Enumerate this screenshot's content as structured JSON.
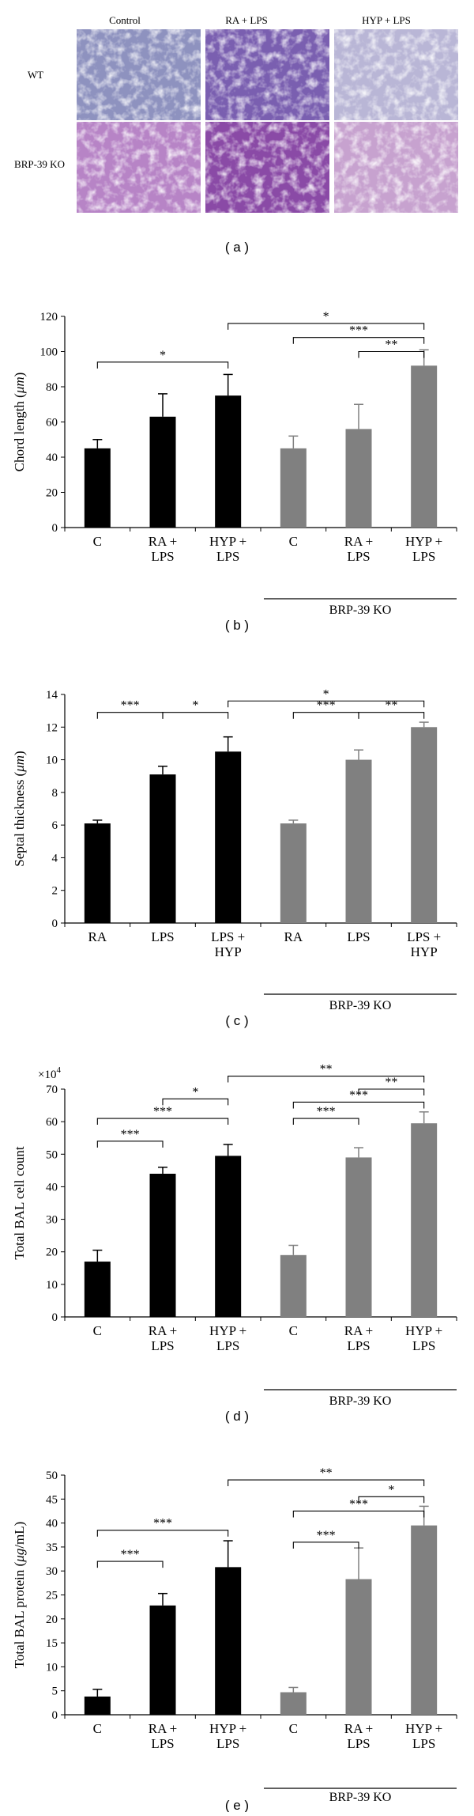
{
  "micrographs": {
    "columns": [
      "Control",
      "RA + LPS",
      "HYP + LPS"
    ],
    "rows": [
      "WT",
      "BRP-39 KO"
    ],
    "colors": [
      [
        "#8e92bf",
        "#7a5fb0",
        "#b9b6d6"
      ],
      [
        "#b784c6",
        "#8a4aa6",
        "#c7a2cf"
      ]
    ],
    "label": "( a )"
  },
  "chart_data": [
    {
      "type": "bar",
      "panel_label": "( b )",
      "ylabel": "Chord length (μm)",
      "ylabel_parts": [
        "Chord length (",
        "μm",
        ")"
      ],
      "ylim": [
        0,
        120
      ],
      "yticks": [
        0,
        20,
        40,
        60,
        80,
        100,
        120
      ],
      "tick_prefix": "",
      "categories": [
        [
          "C"
        ],
        [
          "RA +",
          "LPS"
        ],
        [
          "HYP +",
          "LPS"
        ],
        [
          "C"
        ],
        [
          "RA +",
          "LPS"
        ],
        [
          "HYP +",
          "LPS"
        ]
      ],
      "values": [
        45,
        63,
        75,
        45,
        56,
        92
      ],
      "errors": [
        5,
        13,
        12,
        7,
        14,
        9
      ],
      "colors": [
        "#000000",
        "#000000",
        "#000000",
        "#808080",
        "#808080",
        "#808080"
      ],
      "group_label": "BRP-39 KO",
      "multiplier": "",
      "brackets": [
        {
          "from": 0,
          "to": 2,
          "y": 94,
          "label": "*"
        },
        {
          "from": 2,
          "to": 5,
          "y": 116,
          "label": "*"
        },
        {
          "from": 3,
          "to": 5,
          "y": 108,
          "label": "***"
        },
        {
          "from": 4,
          "to": 5,
          "y": 100,
          "label": "**"
        }
      ]
    },
    {
      "type": "bar",
      "panel_label": "( c )",
      "ylabel": "Septal thickness (μm)",
      "ylabel_parts": [
        "Septal thickness (",
        "μm",
        ")"
      ],
      "ylim": [
        0,
        14
      ],
      "yticks": [
        0,
        2,
        4,
        6,
        8,
        10,
        12,
        14
      ],
      "tick_prefix": "",
      "categories": [
        [
          "RA"
        ],
        [
          "LPS"
        ],
        [
          "LPS +",
          "HYP"
        ],
        [
          "RA"
        ],
        [
          "LPS"
        ],
        [
          "LPS +",
          "HYP"
        ]
      ],
      "values": [
        6.1,
        9.1,
        10.5,
        6.1,
        10.0,
        12.0
      ],
      "errors": [
        0.2,
        0.5,
        0.9,
        0.2,
        0.6,
        0.3
      ],
      "colors": [
        "#000000",
        "#000000",
        "#000000",
        "#808080",
        "#808080",
        "#808080"
      ],
      "group_label": "BRP-39 KO",
      "multiplier": "",
      "brackets": [
        {
          "from": 0,
          "to": 1,
          "y": 12.9,
          "label": "***"
        },
        {
          "from": 1,
          "to": 2,
          "y": 12.9,
          "label": "*"
        },
        {
          "from": 2,
          "to": 5,
          "y": 13.6,
          "label": "*"
        },
        {
          "from": 3,
          "to": 4,
          "y": 12.9,
          "label": "***"
        },
        {
          "from": 4,
          "to": 5,
          "y": 12.9,
          "label": "**"
        }
      ]
    },
    {
      "type": "bar",
      "panel_label": "( d )",
      "ylabel": "Total BAL cell count",
      "ylabel_parts": [
        "Total BAL cell count",
        "",
        ""
      ],
      "ylim": [
        0,
        70
      ],
      "yticks": [
        0,
        10,
        20,
        30,
        40,
        50,
        60,
        70
      ],
      "tick_prefix": "",
      "categories": [
        [
          "C"
        ],
        [
          "RA +",
          "LPS"
        ],
        [
          "HYP +",
          "LPS"
        ],
        [
          "C"
        ],
        [
          "RA +",
          "LPS"
        ],
        [
          "HYP +",
          "LPS"
        ]
      ],
      "values": [
        17,
        44,
        49.5,
        19,
        49,
        59.5
      ],
      "errors": [
        3.5,
        2,
        3.5,
        3,
        3,
        3.5
      ],
      "colors": [
        "#000000",
        "#000000",
        "#000000",
        "#808080",
        "#808080",
        "#808080"
      ],
      "group_label": "BRP-39 KO",
      "multiplier": "×10",
      "multiplier_exp": "4",
      "brackets": [
        {
          "from": 0,
          "to": 1,
          "y": 54,
          "label": "***"
        },
        {
          "from": 0,
          "to": 2,
          "y": 61,
          "label": "***"
        },
        {
          "from": 1,
          "to": 2,
          "y": 67,
          "label": "*"
        },
        {
          "from": 2,
          "to": 5,
          "y": 74,
          "label": "**"
        },
        {
          "from": 3,
          "to": 4,
          "y": 61,
          "label": "***"
        },
        {
          "from": 3,
          "to": 5,
          "y": 66,
          "label": "***"
        },
        {
          "from": 4,
          "to": 5,
          "y": 70,
          "label": "**"
        }
      ]
    },
    {
      "type": "bar",
      "panel_label": "( e )",
      "ylabel": "Total BAL protein (μg/mL)",
      "ylabel_parts": [
        "Total BAL protein (",
        "μg",
        "/mL)"
      ],
      "ylim": [
        0,
        50
      ],
      "yticks": [
        0,
        5,
        10,
        15,
        20,
        25,
        30,
        35,
        40,
        45,
        50
      ],
      "tick_prefix": "",
      "categories": [
        [
          "C"
        ],
        [
          "RA +",
          "LPS"
        ],
        [
          "HYP +",
          "LPS"
        ],
        [
          "C"
        ],
        [
          "RA +",
          "LPS"
        ],
        [
          "HYP +",
          "LPS"
        ]
      ],
      "values": [
        3.8,
        22.8,
        30.8,
        4.7,
        28.3,
        39.5
      ],
      "errors": [
        1.5,
        2.5,
        5.5,
        1,
        6.5,
        4
      ],
      "colors": [
        "#000000",
        "#000000",
        "#000000",
        "#808080",
        "#808080",
        "#808080"
      ],
      "group_label": "BRP-39 KO",
      "multiplier": "",
      "brackets": [
        {
          "from": 0,
          "to": 1,
          "y": 32,
          "label": "***"
        },
        {
          "from": 0,
          "to": 2,
          "y": 38.5,
          "label": "***"
        },
        {
          "from": 2,
          "to": 5,
          "y": 49,
          "label": "**"
        },
        {
          "from": 3,
          "to": 4,
          "y": 36,
          "label": "***"
        },
        {
          "from": 3,
          "to": 5,
          "y": 42.5,
          "label": "***"
        },
        {
          "from": 4,
          "to": 5,
          "y": 45.5,
          "label": "*"
        }
      ]
    }
  ]
}
